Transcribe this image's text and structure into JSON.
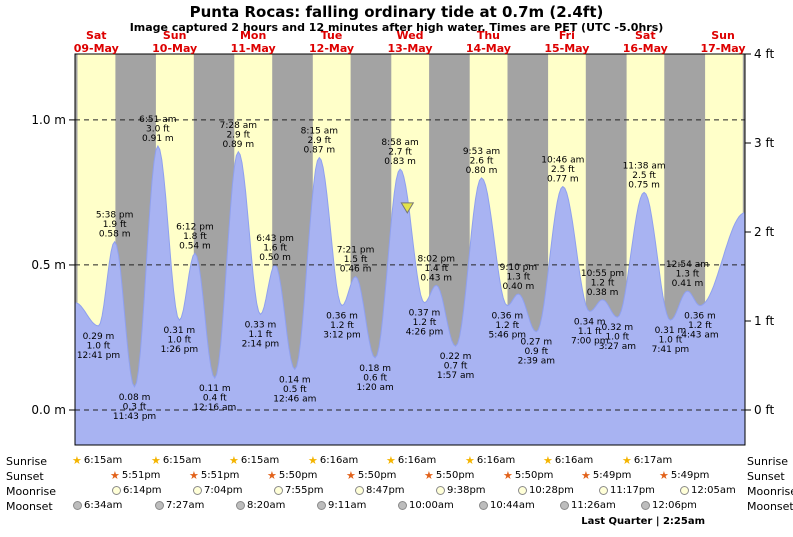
{
  "chart_data": {
    "type": "area",
    "title": "Punta Rocas: falling ordinary tide at 0.7m (2.4ft)",
    "subtitle": "Image captured 2 hours and 12 minutes after high water. Times are PET (UTC -5.0hrs)",
    "ylim_m": [
      -0.12,
      1.23
    ],
    "ylim_ft": [
      -0.4,
      4.0
    ],
    "grid": "dashed horizontal at metre ticks",
    "legend_position": "none",
    "days": [
      {
        "weekday": "Sat",
        "date": "09-May"
      },
      {
        "weekday": "Sun",
        "date": "10-May"
      },
      {
        "weekday": "Mon",
        "date": "11-May"
      },
      {
        "weekday": "Tue",
        "date": "12-May"
      },
      {
        "weekday": "Wed",
        "date": "13-May"
      },
      {
        "weekday": "Thu",
        "date": "14-May"
      },
      {
        "weekday": "Fri",
        "date": "15-May"
      },
      {
        "weekday": "Sat",
        "date": "16-May"
      },
      {
        "weekday": "Sun",
        "date": "17-May"
      }
    ],
    "axis_left": [
      {
        "value": 0.0,
        "label": "0.0 m"
      },
      {
        "value": 0.5,
        "label": "0.5 m"
      },
      {
        "value": 1.0,
        "label": "1.0 m"
      }
    ],
    "axis_right": [
      {
        "value": 0,
        "label": "0 ft"
      },
      {
        "value": 1,
        "label": "1 ft"
      },
      {
        "value": 2,
        "label": "2 ft"
      },
      {
        "value": 3,
        "label": "3 ft"
      },
      {
        "value": 4,
        "label": "4 ft"
      }
    ],
    "tide_events": [
      {
        "day": 9,
        "type": "low",
        "time": "12:41 pm",
        "m": "0.29",
        "ft": "1.0"
      },
      {
        "day": 9,
        "type": "high",
        "time": "5:38 pm",
        "m": "0.58",
        "ft": "1.9"
      },
      {
        "day": 9,
        "type": "low",
        "time": "11:43 pm",
        "m": "0.08",
        "ft": "0.3"
      },
      {
        "day": 10,
        "type": "high",
        "time": "6:51 am",
        "m": "0.91",
        "ft": "3.0"
      },
      {
        "day": 10,
        "type": "low",
        "time": "1:26 pm",
        "m": "0.31",
        "ft": "1.0"
      },
      {
        "day": 10,
        "type": "high",
        "time": "6:12 pm",
        "m": "0.54",
        "ft": "1.8"
      },
      {
        "day": 11,
        "type": "low",
        "time": "12:16 am",
        "m": "0.11",
        "ft": "0.4"
      },
      {
        "day": 11,
        "type": "high",
        "time": "7:28 am",
        "m": "0.89",
        "ft": "2.9"
      },
      {
        "day": 11,
        "type": "low",
        "time": "2:14 pm",
        "m": "0.33",
        "ft": "1.1"
      },
      {
        "day": 11,
        "type": "high",
        "time": "6:43 pm",
        "m": "0.50",
        "ft": "1.6"
      },
      {
        "day": 12,
        "type": "low",
        "time": "12:46 am",
        "m": "0.14",
        "ft": "0.5"
      },
      {
        "day": 12,
        "type": "high",
        "time": "8:15 am",
        "m": "0.87",
        "ft": "2.9"
      },
      {
        "day": 12,
        "type": "low",
        "time": "3:12 pm",
        "m": "0.36",
        "ft": "1.2"
      },
      {
        "day": 12,
        "type": "high",
        "time": "7:21 pm",
        "m": "0.46",
        "ft": "1.5"
      },
      {
        "day": 13,
        "type": "low",
        "time": "1:20 am",
        "m": "0.18",
        "ft": "0.6"
      },
      {
        "day": 13,
        "type": "high",
        "time": "8:58 am",
        "m": "0.83",
        "ft": "2.7"
      },
      {
        "day": 13,
        "type": "low",
        "time": "4:26 pm",
        "m": "0.37",
        "ft": "1.2"
      },
      {
        "day": 13,
        "type": "high",
        "time": "8:02 pm",
        "m": "0.43",
        "ft": "1.4"
      },
      {
        "day": 14,
        "type": "low",
        "time": "1:57 am",
        "m": "0.22",
        "ft": "0.7"
      },
      {
        "day": 14,
        "type": "high",
        "time": "9:53 am",
        "m": "0.80",
        "ft": "2.6"
      },
      {
        "day": 14,
        "type": "low",
        "time": "5:46 pm",
        "m": "0.36",
        "ft": "1.2"
      },
      {
        "day": 14,
        "type": "high",
        "time": "9:10 pm",
        "m": "0.40",
        "ft": "1.3"
      },
      {
        "day": 15,
        "type": "low",
        "time": "2:39 am",
        "m": "0.27",
        "ft": "0.9"
      },
      {
        "day": 15,
        "type": "high",
        "time": "10:46 am",
        "m": "0.77",
        "ft": "2.5"
      },
      {
        "day": 15,
        "type": "low",
        "time": "7:00 pm",
        "m": "0.34",
        "ft": "1.1"
      },
      {
        "day": 15,
        "type": "high",
        "time": "10:55 pm",
        "m": "0.38",
        "ft": "1.2"
      },
      {
        "day": 16,
        "type": "low",
        "time": "3:27 am",
        "m": "0.32",
        "ft": "1.0"
      },
      {
        "day": 16,
        "type": "high",
        "time": "11:38 am",
        "m": "0.75",
        "ft": "2.5"
      },
      {
        "day": 16,
        "type": "low",
        "time": "7:41 pm",
        "m": "0.31",
        "ft": "1.0"
      },
      {
        "day": 17,
        "type": "high",
        "time": "12:54 am",
        "m": "0.41",
        "ft": "1.3"
      },
      {
        "day": 17,
        "type": "low",
        "time": "4:43 am",
        "m": "0.36",
        "ft": "1.2"
      }
    ],
    "current_marker": {
      "event_index": 15,
      "offset_hours": 2.2,
      "height_m": 0.7
    },
    "curve_edges": {
      "start_m": 0.37,
      "end_m": 0.68
    },
    "colors": {
      "day_band": "#ffffc9",
      "night_band": "#a3a3a3",
      "tide_fill": "#a8b3f2",
      "tide_stroke": "#8fa0ee",
      "day_label": "#dd0000",
      "marker": "#e3e34a",
      "sunrise_star": "#f4b400",
      "sunset_star": "#e2621b",
      "moonrise_fill": "#ffffd8",
      "moonset_fill": "#bdbdbd"
    }
  },
  "astro": {
    "rows": [
      {
        "name": "Sunrise",
        "icon": "sunrise-star-icon",
        "events": [
          {
            "day": 9,
            "time": "6:15am"
          },
          {
            "day": 10,
            "time": "6:15am"
          },
          {
            "day": 11,
            "time": "6:15am"
          },
          {
            "day": 12,
            "time": "6:16am"
          },
          {
            "day": 13,
            "time": "6:16am"
          },
          {
            "day": 14,
            "time": "6:16am"
          },
          {
            "day": 15,
            "time": "6:16am"
          },
          {
            "day": 16,
            "time": "6:17am"
          }
        ]
      },
      {
        "name": "Sunset",
        "icon": "sunset-star-icon",
        "events": [
          {
            "day": 9,
            "time": "5:51pm"
          },
          {
            "day": 10,
            "time": "5:51pm"
          },
          {
            "day": 11,
            "time": "5:50pm"
          },
          {
            "day": 12,
            "time": "5:50pm"
          },
          {
            "day": 13,
            "time": "5:50pm"
          },
          {
            "day": 14,
            "time": "5:50pm"
          },
          {
            "day": 15,
            "time": "5:49pm"
          },
          {
            "day": 16,
            "time": "5:49pm"
          }
        ]
      },
      {
        "name": "Moonrise",
        "icon": "moonrise-icon",
        "events": [
          {
            "day": 9,
            "time": "6:14pm"
          },
          {
            "day": 10,
            "time": "7:04pm"
          },
          {
            "day": 11,
            "time": "7:55pm"
          },
          {
            "day": 12,
            "time": "8:47pm"
          },
          {
            "day": 13,
            "time": "9:38pm"
          },
          {
            "day": 14,
            "time": "10:28pm"
          },
          {
            "day": 15,
            "time": "11:17pm"
          },
          {
            "day": 17,
            "time": "12:05am"
          }
        ]
      },
      {
        "name": "Moonset",
        "icon": "moonset-icon",
        "events": [
          {
            "day": 9,
            "time": "6:34am"
          },
          {
            "day": 10,
            "time": "7:27am"
          },
          {
            "day": 11,
            "time": "8:20am"
          },
          {
            "day": 12,
            "time": "9:11am"
          },
          {
            "day": 13,
            "time": "10:00am"
          },
          {
            "day": 14,
            "time": "10:44am"
          },
          {
            "day": 15,
            "time": "11:26am"
          },
          {
            "day": 16,
            "time": "12:06pm"
          }
        ]
      }
    ],
    "footnote": "Last Quarter | 2:25am"
  }
}
